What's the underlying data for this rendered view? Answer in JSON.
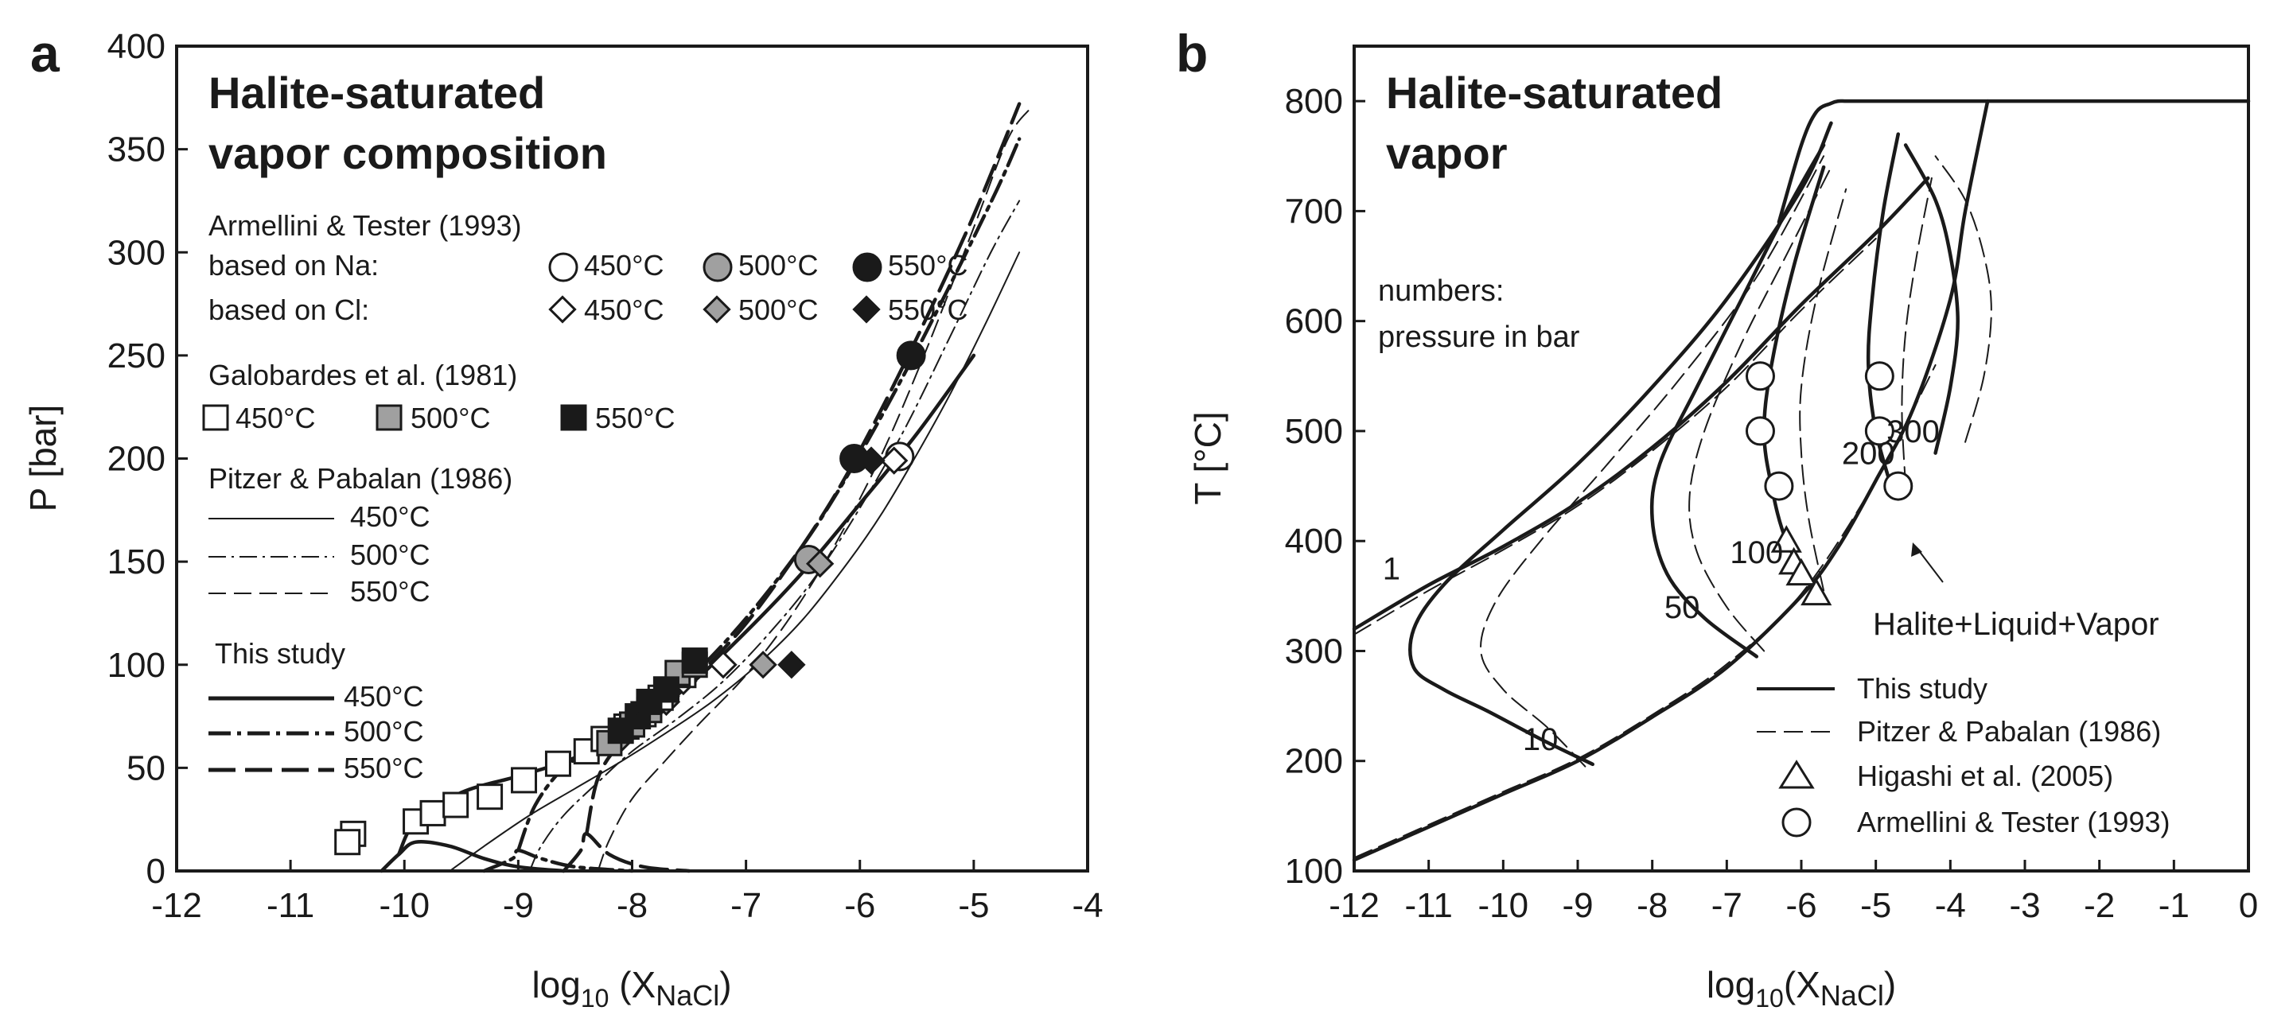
{
  "chart_data": [
    {
      "type": "scatter",
      "panel_label": "a",
      "title": "Halite-saturated",
      "title2": "vapor composition",
      "xlabel": "log",
      "xlabel_sub": "10",
      "xlabel_tail": " (X",
      "xlabel_sub2": "NaCl",
      "xlabel_close": ")",
      "ylabel": "P [bar]",
      "xlim": [
        -12,
        -4
      ],
      "ylim": [
        0,
        400
      ],
      "xticks": [
        -12,
        -11,
        -10,
        -9,
        -8,
        -7,
        -6,
        -5,
        -4
      ],
      "yticks": [
        0,
        50,
        100,
        150,
        200,
        250,
        300,
        350,
        400
      ],
      "legend": {
        "armellini_title": "Armellini & Tester (1993)",
        "based_na": "based on Na:",
        "based_cl": "based on Cl:",
        "galobardes_title": "Galobardes et al. (1981)",
        "pitzer_title": "Pitzer & Pabalan (1986)",
        "this_study_title": "This study",
        "t450": "450°C",
        "t500": "500°C",
        "t550": "550°C"
      },
      "series": [
        {
          "name": "450°C",
          "marker": "open-circle",
          "group": "Armellini & Tester (1993) based on Na",
          "points": [
            [
              -5.65,
              201
            ]
          ]
        },
        {
          "name": "500°C",
          "marker": "gray-circle",
          "group": "Armellini & Tester (1993) based on Na",
          "points": [
            [
              -6.45,
              151
            ]
          ]
        },
        {
          "name": "550°C",
          "marker": "black-circle",
          "group": "Armellini & Tester (1993) based on Na",
          "points": [
            [
              -5.55,
              250
            ],
            [
              -6.05,
              200
            ]
          ]
        },
        {
          "name": "450°C",
          "marker": "open-diamond",
          "group": "Armellini & Tester (1993) based on Cl",
          "points": [
            [
              -5.7,
              199
            ],
            [
              -7.2,
              100
            ],
            [
              -7.55,
              92
            ]
          ]
        },
        {
          "name": "500°C",
          "marker": "gray-diamond",
          "group": "Armellini & Tester (1993) based on Cl",
          "points": [
            [
              -6.35,
              149
            ],
            [
              -6.85,
              100
            ],
            [
              -7.7,
              82
            ],
            [
              -8.1,
              64
            ]
          ]
        },
        {
          "name": "550°C",
          "marker": "black-diamond",
          "group": "Armellini & Tester (1993) based on Cl",
          "points": [
            [
              -5.9,
              199
            ],
            [
              -6.6,
              100
            ]
          ]
        },
        {
          "name": "450°C",
          "marker": "open-square",
          "group": "Galobardes et al. (1981)",
          "points": [
            [
              -10.45,
              18
            ],
            [
              -10.5,
              14
            ],
            [
              -9.9,
              24
            ],
            [
              -9.75,
              28
            ],
            [
              -9.55,
              32
            ],
            [
              -9.25,
              36
            ],
            [
              -8.95,
              44
            ],
            [
              -8.65,
              52
            ],
            [
              -8.4,
              58
            ],
            [
              -8.25,
              64
            ],
            [
              -8.05,
              70
            ],
            [
              -7.9,
              76
            ],
            [
              -7.75,
              84
            ],
            [
              -7.55,
              95
            ]
          ]
        },
        {
          "name": "500°C",
          "marker": "gray-square",
          "group": "Galobardes et al. (1981)",
          "points": [
            [
              -8.2,
              62
            ],
            [
              -8.0,
              71
            ],
            [
              -7.85,
              78
            ],
            [
              -7.7,
              88
            ],
            [
              -7.6,
              96
            ],
            [
              -7.45,
              100
            ]
          ]
        },
        {
          "name": "550°C",
          "marker": "black-square",
          "group": "Galobardes et al. (1981)",
          "points": [
            [
              -8.1,
              68
            ],
            [
              -7.95,
              75
            ],
            [
              -7.85,
              82
            ],
            [
              -7.7,
              88
            ],
            [
              -7.45,
              102
            ]
          ]
        }
      ],
      "curves": [
        {
          "name": "450°C",
          "group": "Pitzer & Pabalan (1986)",
          "style": "thin-solid",
          "x": [
            -9.6,
            -9.3,
            -8.9,
            -8.5,
            -8.1,
            -7.7,
            -7.3,
            -6.9,
            -6.5,
            -6.1,
            -5.8,
            -5.5,
            -5.2,
            -4.9,
            -4.6
          ],
          "y": [
            0,
            12,
            27,
            40,
            53,
            67,
            82,
            100,
            122,
            150,
            174,
            202,
            232,
            265,
            300
          ]
        },
        {
          "name": "500°C",
          "group": "Pitzer & Pabalan (1986)",
          "style": "thin-dashdot",
          "x": [
            -8.9,
            -8.8,
            -8.6,
            -8.3,
            -8.0,
            -7.6,
            -7.2,
            -6.8,
            -6.4,
            -6.0,
            -5.6,
            -5.2,
            -4.85,
            -4.6
          ],
          "y": [
            0,
            12,
            27,
            43,
            58,
            74,
            92,
            115,
            142,
            176,
            215,
            260,
            300,
            325
          ]
        },
        {
          "name": "550°C",
          "group": "Pitzer & Pabalan (1986)",
          "style": "thin-dash",
          "x": [
            -8.3,
            -8.2,
            -8.0,
            -7.7,
            -7.4,
            -7.0,
            -6.6,
            -6.2,
            -5.8,
            -5.4,
            -5.0,
            -4.7,
            -4.5
          ],
          "y": [
            0,
            15,
            35,
            54,
            72,
            95,
            124,
            160,
            203,
            255,
            312,
            355,
            370
          ]
        },
        {
          "name": "450°C",
          "group": "This study",
          "style": "thick-solid",
          "x": [
            -10.05,
            -9.9,
            -9.5,
            -9.0,
            -8.5,
            -8.0,
            -7.5,
            -7.0,
            -6.5,
            -6.0,
            -5.5,
            -5.0
          ],
          "y": [
            8,
            24,
            38,
            46,
            55,
            70,
            90,
            116,
            145,
            178,
            212,
            250
          ]
        },
        {
          "name": "500°C",
          "group": "This study",
          "style": "thick-dashdot",
          "x": [
            -9.0,
            -8.85,
            -8.6,
            -8.3,
            -8.0,
            -7.6,
            -7.2,
            -6.8,
            -6.4,
            -6.0,
            -5.6,
            -5.2,
            -4.8,
            -4.6
          ],
          "y": [
            10,
            32,
            50,
            60,
            70,
            88,
            110,
            136,
            166,
            202,
            242,
            285,
            330,
            355
          ]
        },
        {
          "name": "550°C",
          "group": "This study",
          "style": "thick-dash",
          "x": [
            -8.4,
            -8.3,
            -8.1,
            -7.8,
            -7.4,
            -7.0,
            -6.6,
            -6.2,
            -5.8,
            -5.4,
            -5.0,
            -4.6
          ],
          "y": [
            18,
            45,
            62,
            74,
            96,
            120,
            150,
            184,
            225,
            270,
            318,
            372
          ]
        },
        {
          "name": "450°C",
          "group": "This study",
          "style": "thick-solid-low",
          "x": [
            -10.2,
            -10.05,
            -9.9,
            -9.6,
            -9.3,
            -9.0,
            -8.6
          ],
          "y": [
            0,
            8,
            14,
            12,
            6,
            2,
            0
          ]
        },
        {
          "name": "500°C",
          "group": "This study",
          "style": "thick-dashdot-low",
          "x": [
            -9.3,
            -9.05,
            -9.0,
            -8.8,
            -8.5,
            -8.0
          ],
          "y": [
            0,
            6,
            10,
            6,
            2,
            0
          ]
        },
        {
          "name": "550°C",
          "group": "This study",
          "style": "thick-dash-low",
          "x": [
            -8.6,
            -8.45,
            -8.4,
            -8.2,
            -7.9,
            -7.5
          ],
          "y": [
            0,
            10,
            18,
            8,
            2,
            0
          ]
        }
      ]
    },
    {
      "type": "line",
      "panel_label": "b",
      "title": "Halite-saturated",
      "title2": "vapor",
      "note1": "numbers:",
      "note2": "pressure in bar",
      "xlabel": "log",
      "xlabel_sub": "10",
      "xlabel_tail": "(X",
      "xlabel_sub2": "NaCl",
      "xlabel_close": ")",
      "ylabel": "T [°C]",
      "xlim": [
        -12,
        0
      ],
      "ylim": [
        100,
        850
      ],
      "xticks": [
        -12,
        -11,
        -10,
        -9,
        -8,
        -7,
        -6,
        -5,
        -4,
        -3,
        -2,
        -1,
        0
      ],
      "yticks": [
        100,
        200,
        300,
        400,
        500,
        600,
        700,
        800
      ],
      "isobar_labels": [
        {
          "text": "1",
          "x": -11.5,
          "y": 365
        },
        {
          "text": "10",
          "x": -9.5,
          "y": 210
        },
        {
          "text": "50",
          "x": -7.6,
          "y": 330
        },
        {
          "text": "100",
          "x": -6.6,
          "y": 380
        },
        {
          "text": "200",
          "x": -5.1,
          "y": 470
        },
        {
          "text": "300",
          "x": -4.5,
          "y": 490
        }
      ],
      "annotation": "Halite+Liquid+Vapor",
      "legend": {
        "this_study": "This study",
        "pitzer": "Pitzer & Pabalan (1986)",
        "higashi": "Higashi et al. (2005)",
        "armellini": "Armellini & Tester (1993)"
      },
      "series": [
        {
          "name": "Higashi et al. (2005)",
          "marker": "open-triangle",
          "points": [
            [
              -6.2,
              400
            ],
            [
              -6.1,
              380
            ],
            [
              -6.0,
              370
            ],
            [
              -5.8,
              352
            ]
          ]
        },
        {
          "name": "Armellini & Tester (1993)",
          "marker": "open-circle",
          "points": [
            [
              -6.55,
              550
            ],
            [
              -6.55,
              500
            ],
            [
              -6.3,
              450
            ],
            [
              -4.95,
              550
            ],
            [
              -4.95,
              500
            ],
            [
              -4.7,
              450
            ]
          ]
        }
      ],
      "curves": [
        {
          "name": "HLV",
          "style": "thick-solid",
          "x": [
            -12,
            -11,
            -10,
            -9,
            -8,
            -7,
            -6,
            -5.5,
            -5,
            -4.5,
            -4,
            -3.8,
            -3.5
          ],
          "y": [
            110,
            140,
            170,
            200,
            240,
            285,
            350,
            395,
            455,
            520,
            620,
            700,
            800
          ]
        },
        {
          "name": "vapor-liquid",
          "style": "thick-solid",
          "x": [
            -6.3,
            -6.0,
            -5.8,
            -5.6,
            -5.5,
            -5.4,
            -5.2,
            -5.0,
            -3.5,
            0
          ],
          "y": [
            690,
            760,
            790,
            798,
            800,
            800,
            800,
            800,
            800,
            800
          ]
        },
        {
          "name": "1 bar",
          "style": "thick-solid",
          "x": [
            -12,
            -11,
            -10,
            -9,
            -8,
            -7,
            -6,
            -5,
            -4.3
          ],
          "y": [
            320,
            360,
            395,
            435,
            485,
            545,
            615,
            680,
            730
          ]
        },
        {
          "name": "10 bar",
          "style": "thick-solid",
          "x": [
            -8.8,
            -9.5,
            -10.2,
            -10.8,
            -11.2,
            -11.2,
            -10.8,
            -10.0,
            -9.0,
            -8.0,
            -7.0,
            -6.0,
            -5.6
          ],
          "y": [
            197,
            220,
            245,
            265,
            285,
            320,
            360,
            410,
            470,
            540,
            620,
            720,
            780
          ]
        },
        {
          "name": "50 bar",
          "style": "thick-solid",
          "x": [
            -6.6,
            -7.3,
            -7.8,
            -8.0,
            -7.9,
            -7.4,
            -6.8,
            -6.2,
            -5.7
          ],
          "y": [
            295,
            330,
            370,
            420,
            470,
            540,
            620,
            700,
            760
          ]
        },
        {
          "name": "100 bar",
          "style": "thick-solid",
          "x": [
            -5.8,
            -6.2,
            -6.4,
            -6.5,
            -6.4,
            -6.1,
            -5.7
          ],
          "y": [
            350,
            400,
            450,
            500,
            560,
            650,
            740
          ]
        },
        {
          "name": "200 bar",
          "style": "thick-solid",
          "x": [
            -4.75,
            -5.0,
            -5.1,
            -5.05,
            -4.9,
            -4.7
          ],
          "y": [
            440,
            500,
            560,
            620,
            700,
            770
          ]
        },
        {
          "name": "300 bar",
          "style": "thick-solid",
          "x": [
            -4.2,
            -4.0,
            -3.9,
            -4.0,
            -4.2,
            -4.6
          ],
          "y": [
            480,
            540,
            600,
            660,
            710,
            760
          ]
        },
        {
          "name": "Pitzer HLV",
          "style": "dash",
          "x": [
            -12,
            -11,
            -10,
            -9,
            -8,
            -7,
            -6,
            -5,
            -4.2
          ],
          "y": [
            112,
            142,
            172,
            202,
            242,
            288,
            352,
            455,
            560
          ]
        },
        {
          "name": "Pitzer 1 bar",
          "style": "dash",
          "x": [
            -12,
            -11,
            -10,
            -9,
            -8,
            -7,
            -6,
            -5
          ],
          "y": [
            315,
            355,
            392,
            432,
            482,
            540,
            610,
            675
          ]
        },
        {
          "name": "Pitzer 10 bar",
          "style": "dash",
          "x": [
            -8.9,
            -9.4,
            -10.0,
            -10.3,
            -10.1,
            -9.5,
            -8.6,
            -7.6,
            -6.6,
            -5.7
          ],
          "y": [
            195,
            230,
            265,
            300,
            345,
            400,
            470,
            550,
            640,
            750
          ]
        },
        {
          "name": "Pitzer 50 bar",
          "style": "dash",
          "x": [
            -6.5,
            -7.0,
            -7.4,
            -7.5,
            -7.3,
            -6.8,
            -6.2,
            -5.6
          ],
          "y": [
            300,
            340,
            390,
            440,
            500,
            580,
            660,
            740
          ]
        },
        {
          "name": "Pitzer 100 bar",
          "style": "dash",
          "x": [
            -5.7,
            -5.9,
            -6.0,
            -6.0,
            -5.8,
            -5.4
          ],
          "y": [
            355,
            420,
            480,
            540,
            620,
            720
          ]
        },
        {
          "name": "Pitzer 200 bar",
          "style": "dash",
          "x": [
            -4.6,
            -4.65,
            -4.6,
            -4.45,
            -4.25
          ],
          "y": [
            450,
            520,
            590,
            660,
            730
          ]
        },
        {
          "name": "Pitzer 300 bar",
          "style": "dash",
          "x": [
            -3.8,
            -3.55,
            -3.45,
            -3.55,
            -3.8,
            -4.2
          ],
          "y": [
            490,
            550,
            610,
            660,
            710,
            750
          ]
        }
      ]
    }
  ]
}
